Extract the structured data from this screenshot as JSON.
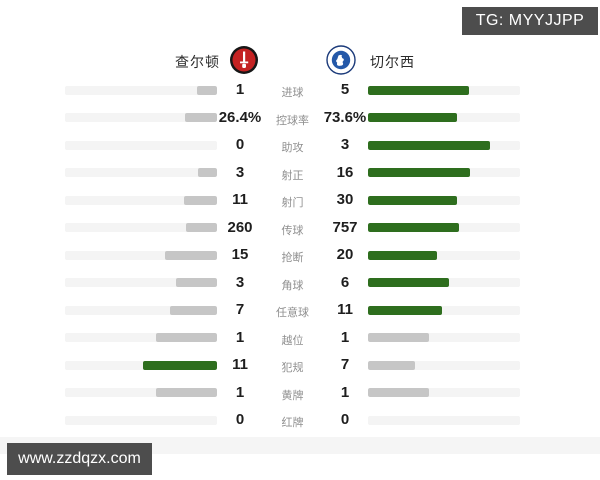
{
  "header": {
    "home_team": "查尔顿",
    "away_team": "切尔西"
  },
  "watermarks": {
    "top_right": "TG: MYYJJPP",
    "bottom_left": "www.zzdqzx.com"
  },
  "colors": {
    "win_bar": "#2e6e1e",
    "lose_bar": "#c6c6c6",
    "track": "#f4f4f4",
    "value_text": "#1e1e1e",
    "label_text": "#8f8f8f",
    "charlton_red": "#c42222",
    "chelsea_blue": "#2458a8",
    "watermark_bg": "#4d4d4d"
  },
  "chart_data": {
    "type": "bar",
    "layout": "mirrored horizontal comparison bars, winner bar green, loser/tie bar gray, max fill 80% of track",
    "categories": [
      "进球",
      "控球率",
      "助攻",
      "射正",
      "射门",
      "传球",
      "抢断",
      "角球",
      "任意球",
      "越位",
      "犯规",
      "黄牌",
      "红牌"
    ],
    "series": [
      {
        "name": "查尔顿",
        "values": [
          "1",
          "26.4%",
          "0",
          "3",
          "11",
          "260",
          "15",
          "3",
          "7",
          "1",
          "11",
          "1",
          "0"
        ]
      },
      {
        "name": "切尔西",
        "values": [
          "5",
          "73.6%",
          "3",
          "16",
          "30",
          "757",
          "20",
          "6",
          "11",
          "1",
          "7",
          "1",
          "0"
        ]
      }
    ]
  }
}
